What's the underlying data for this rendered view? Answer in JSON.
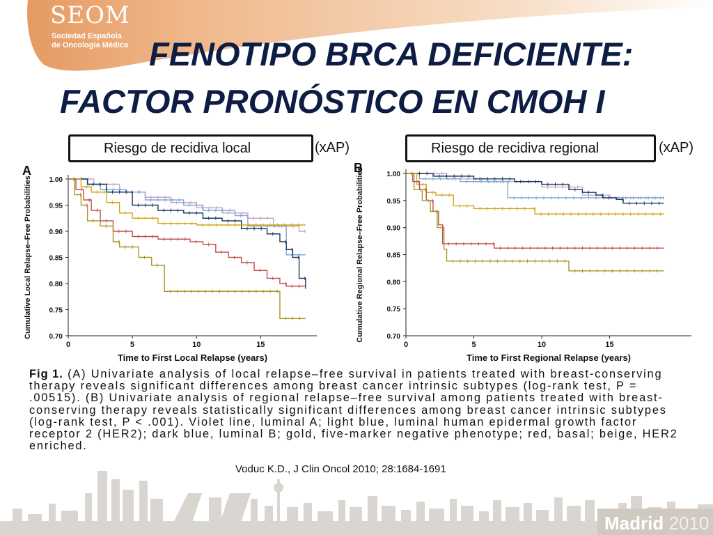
{
  "header": {
    "logo_title": "SEOM",
    "logo_line1": "Sociedad Española",
    "logo_line2": "de Oncología Médica",
    "title_line1": "FENOTIPO BRCA DEFICIENTE:",
    "title_line2": "FACTOR PRONÓSTICO EN CMOH I"
  },
  "legends": {
    "left_box": "Riesgo de recidiva local",
    "left_suffix": "(xAP)",
    "right_box": "Riesgo de recidiva regional",
    "right_suffix": "(xAP)"
  },
  "colors": {
    "luminal_a": "#c9a3c9",
    "her2": "#7ba9d6",
    "luminal_b": "#1b3a5e",
    "five_marker_negative": "#d4a418",
    "basal": "#c0504d",
    "her2_enriched": "#a89528",
    "title": "#0d1d44"
  },
  "chart_data": [
    {
      "type": "line",
      "panel": "A",
      "xlabel": "Time to First Local Relapse (years)",
      "ylabel": "Cumulative Local Relapse–Free Probabilities",
      "xlim": [
        0,
        19
      ],
      "ylim": [
        0.7,
        1.0
      ],
      "x_ticks": [
        "0",
        "5",
        "10",
        "15"
      ],
      "y_ticks": [
        "1.00",
        "0.95",
        "0.90",
        "0.85",
        "0.80",
        "0.75",
        "0.70"
      ],
      "series": [
        {
          "name": "luminal A",
          "color_key": "luminal_a",
          "points": [
            [
              0,
              1.0
            ],
            [
              2,
              0.99
            ],
            [
              4,
              0.975
            ],
            [
              6,
              0.965
            ],
            [
              8,
              0.955
            ],
            [
              10,
              0.945
            ],
            [
              12,
              0.935
            ],
            [
              14,
              0.925
            ],
            [
              16,
              0.91
            ],
            [
              18,
              0.9
            ],
            [
              18.5,
              0.9
            ]
          ]
        },
        {
          "name": "HER2",
          "color_key": "her2",
          "points": [
            [
              0,
              1.0
            ],
            [
              1.5,
              0.99
            ],
            [
              2.5,
              0.98
            ],
            [
              4.5,
              0.975
            ],
            [
              6,
              0.96
            ],
            [
              9,
              0.95
            ],
            [
              10.5,
              0.94
            ],
            [
              13,
              0.93
            ],
            [
              14,
              0.91
            ],
            [
              17,
              0.91
            ],
            [
              17,
              0.855
            ],
            [
              18.5,
              0.855
            ]
          ]
        },
        {
          "name": "luminal B",
          "color_key": "luminal_b",
          "points": [
            [
              0,
              1.0
            ],
            [
              1.5,
              0.99
            ],
            [
              3,
              0.975
            ],
            [
              5,
              0.95
            ],
            [
              7,
              0.94
            ],
            [
              9,
              0.935
            ],
            [
              10.5,
              0.925
            ],
            [
              12,
              0.92
            ],
            [
              13.5,
              0.905
            ],
            [
              15.5,
              0.895
            ],
            [
              16.5,
              0.88
            ],
            [
              17,
              0.865
            ],
            [
              17.5,
              0.85
            ],
            [
              18,
              0.81
            ],
            [
              18.5,
              0.79
            ]
          ]
        },
        {
          "name": "five-marker negative",
          "color_key": "five_marker_negative",
          "points": [
            [
              0,
              1.0
            ],
            [
              1,
              0.985
            ],
            [
              1.8,
              0.975
            ],
            [
              3,
              0.955
            ],
            [
              4,
              0.935
            ],
            [
              5,
              0.925
            ],
            [
              7,
              0.915
            ],
            [
              10,
              0.912
            ],
            [
              12,
              0.912
            ],
            [
              18.5,
              0.912
            ]
          ]
        },
        {
          "name": "basal",
          "color_key": "basal",
          "points": [
            [
              0,
              1.0
            ],
            [
              0.6,
              0.98
            ],
            [
              1.2,
              0.96
            ],
            [
              1.8,
              0.94
            ],
            [
              2.5,
              0.92
            ],
            [
              3.5,
              0.9
            ],
            [
              5,
              0.89
            ],
            [
              7,
              0.885
            ],
            [
              9.5,
              0.88
            ],
            [
              10.5,
              0.875
            ],
            [
              11.5,
              0.86
            ],
            [
              12.5,
              0.85
            ],
            [
              13.5,
              0.84
            ],
            [
              14.5,
              0.825
            ],
            [
              15.5,
              0.81
            ],
            [
              16.5,
              0.8
            ],
            [
              17,
              0.795
            ],
            [
              18.5,
              0.795
            ]
          ]
        },
        {
          "name": "HER2 enriched",
          "color_key": "her2_enriched",
          "points": [
            [
              0,
              1.0
            ],
            [
              0.5,
              0.97
            ],
            [
              1,
              0.95
            ],
            [
              1.5,
              0.92
            ],
            [
              2.5,
              0.91
            ],
            [
              3.5,
              0.88
            ],
            [
              4,
              0.87
            ],
            [
              5.5,
              0.85
            ],
            [
              6.5,
              0.835
            ],
            [
              7.5,
              0.785
            ],
            [
              12,
              0.785
            ],
            [
              16.5,
              0.785
            ],
            [
              16.5,
              0.733
            ],
            [
              18.5,
              0.733
            ]
          ]
        }
      ]
    },
    {
      "type": "line",
      "panel": "B",
      "xlabel": "Time to First Regional Relapse (years)",
      "ylabel": "Cumulative Regional Relapse–Free Probabilities",
      "xlim": [
        0,
        20
      ],
      "ylim": [
        0.7,
        1.0
      ],
      "x_ticks": [
        "0",
        "5",
        "10",
        "15"
      ],
      "y_ticks": [
        "1.00",
        "0.95",
        "0.90",
        "0.85",
        "0.80",
        "0.75",
        "0.70"
      ],
      "series": [
        {
          "name": "luminal A",
          "color_key": "luminal_a",
          "points": [
            [
              0,
              1.0
            ],
            [
              3,
              0.99
            ],
            [
              6,
              0.985
            ],
            [
              10,
              0.975
            ],
            [
              13,
              0.96
            ],
            [
              15,
              0.955
            ],
            [
              19,
              0.955
            ]
          ]
        },
        {
          "name": "HER2",
          "color_key": "her2",
          "points": [
            [
              0,
              1.0
            ],
            [
              1,
              0.99
            ],
            [
              4,
              0.985
            ],
            [
              7.5,
              0.985
            ],
            [
              7.5,
              0.955
            ],
            [
              19,
              0.955
            ]
          ]
        },
        {
          "name": "luminal B",
          "color_key": "luminal_b",
          "points": [
            [
              0,
              1.0
            ],
            [
              2,
              0.995
            ],
            [
              5,
              0.99
            ],
            [
              8,
              0.985
            ],
            [
              10,
              0.98
            ],
            [
              12,
              0.97
            ],
            [
              13,
              0.965
            ],
            [
              14,
              0.96
            ],
            [
              14.5,
              0.955
            ],
            [
              15.5,
              0.952
            ],
            [
              16,
              0.945
            ],
            [
              19,
              0.945
            ]
          ]
        },
        {
          "name": "five-marker negative",
          "color_key": "five_marker_negative",
          "points": [
            [
              0,
              1.0
            ],
            [
              0.8,
              0.98
            ],
            [
              1.5,
              0.965
            ],
            [
              2.2,
              0.96
            ],
            [
              3.5,
              0.94
            ],
            [
              5,
              0.935
            ],
            [
              9,
              0.935
            ],
            [
              9.5,
              0.925
            ],
            [
              19,
              0.925
            ]
          ]
        },
        {
          "name": "basal",
          "color_key": "basal",
          "points": [
            [
              0,
              1.0
            ],
            [
              0.5,
              0.985
            ],
            [
              1,
              0.97
            ],
            [
              1.5,
              0.95
            ],
            [
              2,
              0.93
            ],
            [
              2.4,
              0.905
            ],
            [
              2.7,
              0.87
            ],
            [
              6.5,
              0.87
            ],
            [
              6.5,
              0.862
            ],
            [
              19,
              0.862
            ]
          ]
        },
        {
          "name": "HER2 enriched",
          "color_key": "her2_enriched",
          "points": [
            [
              0,
              1.0
            ],
            [
              0.6,
              0.97
            ],
            [
              1.2,
              0.95
            ],
            [
              1.8,
              0.93
            ],
            [
              2.3,
              0.9
            ],
            [
              2.8,
              0.86
            ],
            [
              3,
              0.838
            ],
            [
              12,
              0.838
            ],
            [
              12,
              0.82
            ],
            [
              19,
              0.82
            ]
          ]
        }
      ]
    }
  ],
  "caption": {
    "fig_label": "Fig 1.",
    "text": "(A) Univariate analysis of local relapse–free survival in patients treated with breast-conserving therapy reveals significant differences among breast cancer intrinsic subtypes (log-rank test, P = .00515). (B) Univariate analysis of regional relapse–free survival among patients treated with breast-conserving therapy reveals statistically significant differences among breast cancer intrinsic subtypes (log-rank test, P < .001). Violet line, luminal A; light blue, luminal human epidermal growth factor receptor 2 (HER2); dark blue, luminal B; gold, five-marker negative phenotype; red, basal; beige, HER2 enriched."
  },
  "citation": "Voduc K.D., J Clin Oncol  2010; 28:1684-1691",
  "footer": {
    "city": "Madrid",
    "year": "2010"
  }
}
